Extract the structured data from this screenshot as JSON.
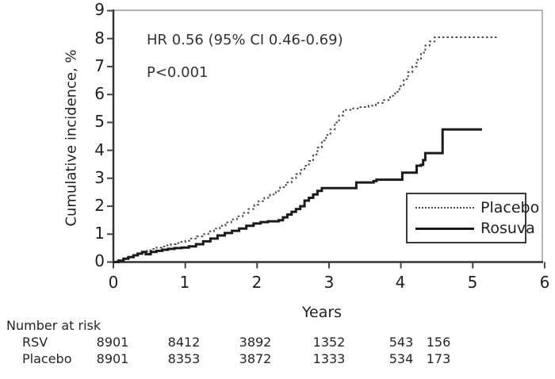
{
  "chart_data": {
    "type": "line",
    "step": true,
    "title": "",
    "xlabel": "Years",
    "ylabel": "Cumulative incidence, %",
    "xlim": [
      0,
      6
    ],
    "ylim": [
      0,
      9
    ],
    "x_ticks": [
      "0",
      "1",
      "2",
      "3",
      "4",
      "5",
      "6"
    ],
    "y_ticks": [
      "0",
      "1",
      "2",
      "3",
      "4",
      "5",
      "6",
      "7",
      "8",
      "9"
    ],
    "grid": false,
    "legend_position": "inside lower right, boxed",
    "annotations": [
      {
        "text": "HR 0.56 (95% CI 0.46-0.69)"
      },
      {
        "text": "P<0.001"
      }
    ],
    "series": [
      {
        "id": "placebo",
        "name": "Placebo",
        "style": "dotted",
        "color": "#4a4a4a",
        "points": [
          [
            0,
            0
          ],
          [
            0.06,
            0.04
          ],
          [
            0.13,
            0.1
          ],
          [
            0.2,
            0.17
          ],
          [
            0.27,
            0.24
          ],
          [
            0.33,
            0.3
          ],
          [
            0.4,
            0.36
          ],
          [
            0.47,
            0.42
          ],
          [
            0.53,
            0.47
          ],
          [
            0.6,
            0.52
          ],
          [
            0.67,
            0.56
          ],
          [
            0.73,
            0.6
          ],
          [
            0.8,
            0.64
          ],
          [
            0.87,
            0.68
          ],
          [
            0.93,
            0.72
          ],
          [
            1.0,
            0.76
          ],
          [
            1.08,
            0.84
          ],
          [
            1.16,
            0.92
          ],
          [
            1.24,
            1.0
          ],
          [
            1.32,
            1.1
          ],
          [
            1.4,
            1.2
          ],
          [
            1.48,
            1.3
          ],
          [
            1.56,
            1.42
          ],
          [
            1.64,
            1.53
          ],
          [
            1.72,
            1.64
          ],
          [
            1.8,
            1.76
          ],
          [
            1.88,
            1.9
          ],
          [
            1.96,
            2.05
          ],
          [
            2.02,
            2.18
          ],
          [
            2.1,
            2.3
          ],
          [
            2.18,
            2.42
          ],
          [
            2.26,
            2.55
          ],
          [
            2.32,
            2.68
          ],
          [
            2.4,
            2.85
          ],
          [
            2.48,
            3.0
          ],
          [
            2.54,
            3.15
          ],
          [
            2.6,
            3.3
          ],
          [
            2.66,
            3.45
          ],
          [
            2.72,
            3.62
          ],
          [
            2.78,
            3.85
          ],
          [
            2.84,
            4.1
          ],
          [
            2.9,
            4.35
          ],
          [
            2.96,
            4.55
          ],
          [
            3.02,
            4.75
          ],
          [
            3.08,
            5.0
          ],
          [
            3.14,
            5.25
          ],
          [
            3.2,
            5.45
          ],
          [
            3.3,
            5.5
          ],
          [
            3.42,
            5.55
          ],
          [
            3.55,
            5.6
          ],
          [
            3.65,
            5.7
          ],
          [
            3.75,
            5.8
          ],
          [
            3.85,
            5.95
          ],
          [
            3.92,
            6.1
          ],
          [
            3.98,
            6.3
          ],
          [
            4.04,
            6.55
          ],
          [
            4.1,
            6.8
          ],
          [
            4.16,
            7.0
          ],
          [
            4.22,
            7.25
          ],
          [
            4.28,
            7.5
          ],
          [
            4.34,
            7.75
          ],
          [
            4.4,
            7.9
          ],
          [
            4.47,
            8.05
          ],
          [
            5.35,
            8.05
          ]
        ]
      },
      {
        "id": "rosuva",
        "name": "Rosuva",
        "style": "solid",
        "color": "#1b1b1b",
        "points": [
          [
            0,
            0
          ],
          [
            0.07,
            0.05
          ],
          [
            0.14,
            0.12
          ],
          [
            0.21,
            0.18
          ],
          [
            0.28,
            0.24
          ],
          [
            0.34,
            0.3
          ],
          [
            0.4,
            0.36
          ],
          [
            0.45,
            0.28
          ],
          [
            0.52,
            0.36
          ],
          [
            0.6,
            0.4
          ],
          [
            0.68,
            0.44
          ],
          [
            0.76,
            0.47
          ],
          [
            0.85,
            0.5
          ],
          [
            0.95,
            0.52
          ],
          [
            1.05,
            0.56
          ],
          [
            1.15,
            0.64
          ],
          [
            1.25,
            0.74
          ],
          [
            1.35,
            0.84
          ],
          [
            1.45,
            0.95
          ],
          [
            1.55,
            1.04
          ],
          [
            1.65,
            1.12
          ],
          [
            1.75,
            1.2
          ],
          [
            1.85,
            1.3
          ],
          [
            1.95,
            1.38
          ],
          [
            2.05,
            1.43
          ],
          [
            2.15,
            1.46
          ],
          [
            2.3,
            1.5
          ],
          [
            2.36,
            1.6
          ],
          [
            2.42,
            1.7
          ],
          [
            2.48,
            1.8
          ],
          [
            2.54,
            1.9
          ],
          [
            2.6,
            2.0
          ],
          [
            2.66,
            2.2
          ],
          [
            2.72,
            2.3
          ],
          [
            2.78,
            2.42
          ],
          [
            2.84,
            2.55
          ],
          [
            2.9,
            2.65
          ],
          [
            3.33,
            2.65
          ],
          [
            3.38,
            2.85
          ],
          [
            3.62,
            2.9
          ],
          [
            3.66,
            2.95
          ],
          [
            3.98,
            2.95
          ],
          [
            4.02,
            3.2
          ],
          [
            4.18,
            3.2
          ],
          [
            4.22,
            3.45
          ],
          [
            4.28,
            3.48
          ],
          [
            4.31,
            3.65
          ],
          [
            4.34,
            3.9
          ],
          [
            4.55,
            3.9
          ],
          [
            4.58,
            4.75
          ],
          [
            5.13,
            4.75
          ]
        ]
      }
    ]
  },
  "risk_table": {
    "header": "Number at risk",
    "rows": [
      {
        "label": "RSV",
        "values": [
          "8901",
          "8412",
          "3892",
          "1352",
          "543",
          "156"
        ]
      },
      {
        "label": "Placebo",
        "values": [
          "8901",
          "8353",
          "3872",
          "1333",
          "534",
          "173"
        ]
      }
    ]
  }
}
